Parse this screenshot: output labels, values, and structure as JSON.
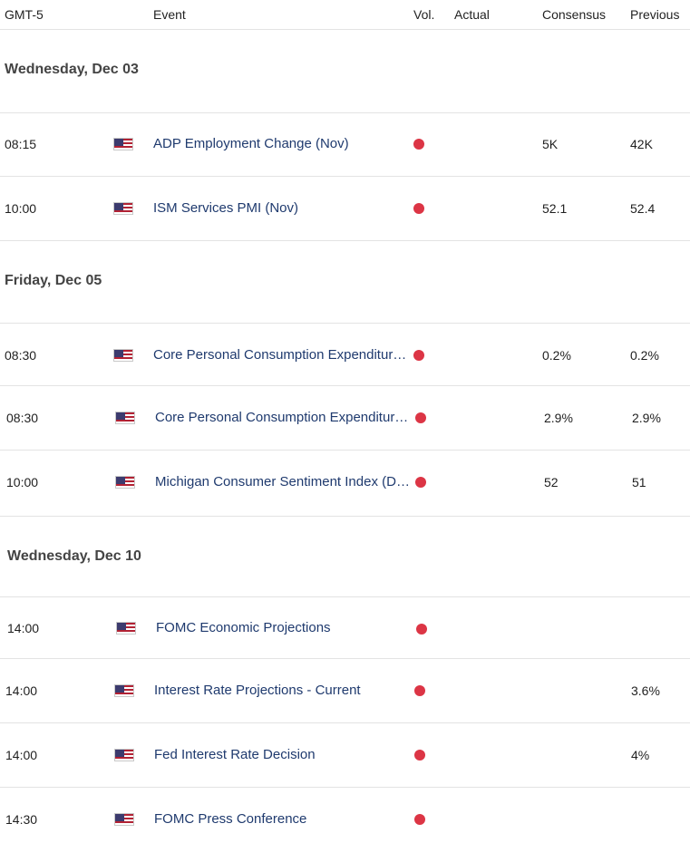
{
  "header": {
    "timezone": "GMT-5",
    "event": "Event",
    "vol": "Vol.",
    "actual": "Actual",
    "consensus": "Consensus",
    "previous": "Previous"
  },
  "colors": {
    "impact_high": "#dc3545",
    "event_text": "#1f3a6e",
    "divider": "#e3e3e3"
  },
  "days": [
    {
      "title": "Wednesday, Dec 03",
      "events": [
        {
          "time": "08:15",
          "country_icon": "us-flag-icon",
          "event": "ADP Employment Change (Nov)",
          "impact": "high",
          "actual": "",
          "consensus": "5K",
          "previous": "42K"
        },
        {
          "time": "10:00",
          "country_icon": "us-flag-icon",
          "event": "ISM Services PMI (Nov)",
          "impact": "high",
          "actual": "",
          "consensus": "52.1",
          "previous": "52.4"
        }
      ]
    },
    {
      "title": "Friday, Dec 05",
      "events": [
        {
          "time": "08:30",
          "country_icon": "us-flag-icon",
          "event": "Core Personal Consumption Expenditur…",
          "impact": "high",
          "actual": "",
          "consensus": "0.2%",
          "previous": "0.2%"
        },
        {
          "time": "08:30",
          "country_icon": "us-flag-icon",
          "event": "Core Personal Consumption Expenditur…",
          "impact": "high",
          "actual": "",
          "consensus": "2.9%",
          "previous": "2.9%"
        },
        {
          "time": "10:00",
          "country_icon": "us-flag-icon",
          "event": "Michigan Consumer Sentiment Index (D…",
          "impact": "high",
          "actual": "",
          "consensus": "52",
          "previous": "51"
        }
      ]
    },
    {
      "title": "Wednesday, Dec 10",
      "events": [
        {
          "time": "14:00",
          "country_icon": "us-flag-icon",
          "event": "FOMC Economic Projections",
          "impact": "high",
          "actual": "",
          "consensus": "",
          "previous": ""
        },
        {
          "time": "14:00",
          "country_icon": "us-flag-icon",
          "event": "Interest Rate Projections - Current",
          "impact": "high",
          "actual": "",
          "consensus": "",
          "previous": "3.6%"
        },
        {
          "time": "14:00",
          "country_icon": "us-flag-icon",
          "event": "Fed Interest Rate Decision",
          "impact": "high",
          "actual": "",
          "consensus": "",
          "previous": "4%"
        },
        {
          "time": "14:30",
          "country_icon": "us-flag-icon",
          "event": "FOMC Press Conference",
          "impact": "high",
          "actual": "",
          "consensus": "",
          "previous": ""
        }
      ]
    }
  ]
}
